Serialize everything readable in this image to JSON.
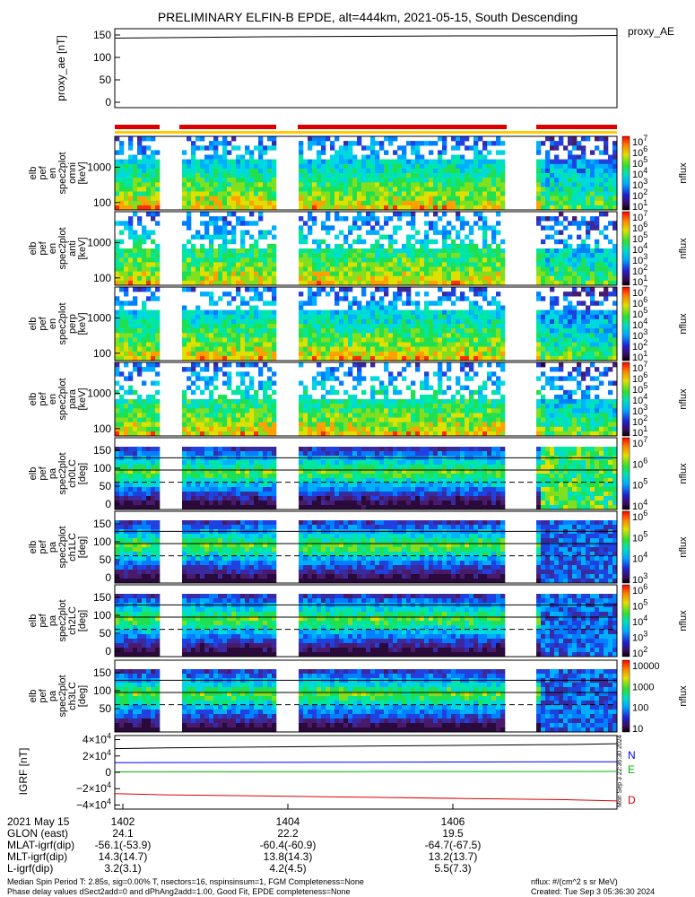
{
  "title": "PRELIMINARY ELFIN-B EPDE, alt=444km, 2021-05-15, South Descending",
  "colors": {
    "bar_red": "#dd0000",
    "bar_yellow": "#ffcc00",
    "ae_line": "#000000",
    "N": "#0000ff",
    "E": "#00bb00",
    "D": "#dd0000"
  },
  "chart_data": [
    {
      "type": "line",
      "panel": "proxy_ae",
      "ylabel": "proxy_ae [nT]",
      "legend": "proxy_AE",
      "yticks": [
        "150",
        "100",
        "50",
        "0"
      ],
      "ylim": [
        0,
        160
      ],
      "x": [
        0,
        0.1,
        0.3,
        0.5,
        0.7,
        0.9,
        1.0
      ],
      "y": [
        143,
        144,
        146,
        147,
        148,
        148,
        149
      ]
    },
    {
      "type": "heatmap",
      "panel": "omni",
      "ylabel": [
        "elb",
        "pef",
        "en",
        "spec2plot",
        "omni",
        "[keV]"
      ],
      "yticks": [
        "1000",
        "100"
      ],
      "cbar_ticks": [
        "10^7",
        "10^6",
        "10^5",
        "10^4",
        "10^3",
        "10^2",
        "10^1"
      ],
      "cbar_label": "nflux"
    },
    {
      "type": "heatmap",
      "panel": "anti",
      "ylabel": [
        "elb",
        "pef",
        "en",
        "spec2plot",
        "anti",
        "[keV]"
      ],
      "yticks": [
        "1000",
        "100"
      ],
      "cbar_ticks": [
        "10^7",
        "10^6",
        "10^5",
        "10^4",
        "10^3",
        "10^2",
        "10^1"
      ],
      "cbar_label": "nflux"
    },
    {
      "type": "heatmap",
      "panel": "perp",
      "ylabel": [
        "elb",
        "pef",
        "en",
        "spec2plot",
        "perp",
        "[keV]"
      ],
      "yticks": [
        "1000",
        "100"
      ],
      "cbar_ticks": [
        "10^7",
        "10^6",
        "10^5",
        "10^4",
        "10^3",
        "10^2",
        "10^1"
      ],
      "cbar_label": "nflux"
    },
    {
      "type": "heatmap",
      "panel": "para",
      "ylabel": [
        "elb",
        "pef",
        "en",
        "spec2plot",
        "para",
        "[keV]"
      ],
      "yticks": [
        "1000",
        "100"
      ],
      "cbar_ticks": [
        "10^7",
        "10^6",
        "10^5",
        "10^4",
        "10^3",
        "10^2",
        "10^1"
      ],
      "cbar_label": "nflux"
    },
    {
      "type": "heatmap",
      "panel": "ch0LC",
      "ylabel": [
        "elb",
        "pef",
        "pa",
        "spec2plot",
        "ch0LC",
        "[deg]"
      ],
      "yticks": [
        "150",
        "100",
        "50",
        "0"
      ],
      "cbar_ticks": [
        "10^7",
        "10^6",
        "10^5",
        "10^4"
      ],
      "cbar_label": "nflux"
    },
    {
      "type": "heatmap",
      "panel": "ch1LC",
      "ylabel": [
        "elb",
        "pef",
        "pa",
        "spec2plot",
        "ch1LC",
        "[deg]"
      ],
      "yticks": [
        "150",
        "100",
        "50",
        "0"
      ],
      "cbar_ticks": [
        "10^6",
        "10^5",
        "10^4",
        "10^3"
      ],
      "cbar_label": "nflux"
    },
    {
      "type": "heatmap",
      "panel": "ch2LC",
      "ylabel": [
        "elb",
        "pef",
        "pa",
        "spec2plot",
        "ch2LC",
        "[deg]"
      ],
      "yticks": [
        "150",
        "100",
        "50",
        "0"
      ],
      "cbar_ticks": [
        "10^6",
        "10^5",
        "10^4",
        "10^3",
        "10^2"
      ],
      "cbar_label": "nflux"
    },
    {
      "type": "heatmap",
      "panel": "ch3LC",
      "ylabel": [
        "elb",
        "pef",
        "pa",
        "spec2plot",
        "ch3LC",
        "[deg]"
      ],
      "yticks": [
        "150",
        "100",
        "50"
      ],
      "cbar_ticks": [
        "10000",
        "1000",
        "100",
        "10"
      ],
      "cbar_label": "nflux"
    },
    {
      "type": "line",
      "panel": "igrf",
      "ylabel": "IGRF [nT]",
      "yticks": [
        "4×10^4",
        "2×10^4",
        "0",
        "−2×10^4",
        "−4×10^4"
      ],
      "ylim": [
        -45000,
        45000
      ],
      "series": [
        {
          "name": "N",
          "values": [
            11800,
            12000,
            12200,
            12400,
            12600,
            12800,
            13000
          ]
        },
        {
          "name": "E",
          "values": [
            500,
            600,
            700,
            800,
            900,
            1000,
            1100
          ]
        },
        {
          "name": "D",
          "values": [
            -26000,
            -27500,
            -29000,
            -30500,
            -32000,
            -33500,
            -35000
          ]
        }
      ],
      "extra_series": [
        {
          "values": [
            29000,
            30000,
            31000,
            32000,
            33000,
            34000,
            35000
          ]
        }
      ],
      "x": [
        0,
        0.1,
        0.3,
        0.5,
        0.7,
        0.9,
        1.0
      ]
    }
  ],
  "footer": {
    "date": "2021 May 15",
    "rows": [
      {
        "label": "GLON (east)",
        "v1402": "24.1",
        "v1404": "22.2",
        "v1406": "19.5"
      },
      {
        "label": "MLAT-igrf(dip)",
        "v1402": "-56.1(-53.9)",
        "v1404": "-60.4(-60.9)",
        "v1406": "-64.7(-67.5)"
      },
      {
        "label": "MLT-igrf(dip)",
        "v1402": "14.3(14.7)",
        "v1404": "13.8(14.3)",
        "v1406": "13.2(13.7)"
      },
      {
        "label": "L-igrf(dip)",
        "v1402": "3.2(3.1)",
        "v1404": "4.2(4.5)",
        "v1406": "5.5(7.3)"
      }
    ],
    "times": [
      "1402",
      "1404",
      "1406"
    ],
    "note1": "Median Spin Period T: 2.85s, sig=0.00% T, nsectors=16, nspinsinsum=1, FGM Completeness=None",
    "note2": "Phase delay values dSect2add=0 and dPhAng2add=1.00, Good Fit, EPDE completeness=None",
    "nflux_units": "nflux: #/(cm^2 s sr MeV)",
    "created": "Created: Tue Sep  3 05:36:30 2024",
    "side_stamp": "Mon Sep  3 22:36:30 2024"
  }
}
